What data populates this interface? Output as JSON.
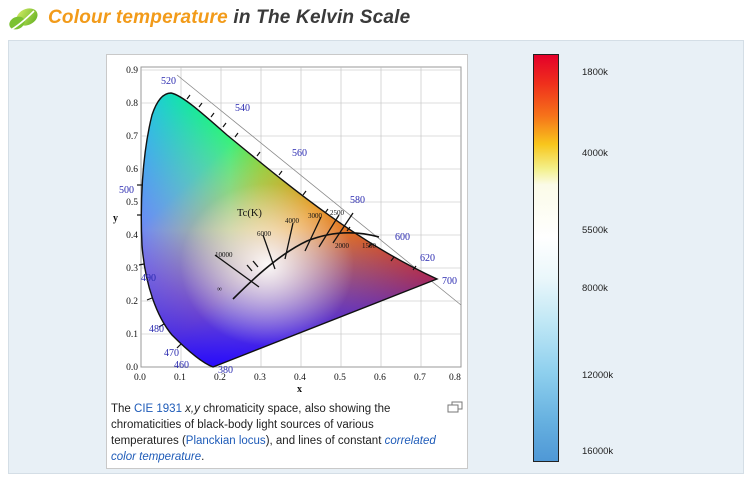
{
  "header": {
    "title_accent": "Colour temperature",
    "title_rest": " in The Kelvin Scale"
  },
  "diagram": {
    "x_ticks": [
      "0.0",
      "0.1",
      "0.2",
      "0.3",
      "0.4",
      "0.5",
      "0.6",
      "0.7",
      "0.8"
    ],
    "y_ticks": [
      "0.0",
      "0.1",
      "0.2",
      "0.3",
      "0.4",
      "0.5",
      "0.6",
      "0.7",
      "0.8",
      "0.9"
    ],
    "x_label": "x",
    "y_label": "y",
    "wavelengths": [
      "520",
      "540",
      "560",
      "580",
      "600",
      "620",
      "700",
      "500",
      "490",
      "480",
      "470",
      "460",
      "380"
    ],
    "tc_label": "Tc(K)",
    "cct_labels": [
      "10000",
      "6000",
      "4000",
      "3000",
      "2500",
      "2000",
      "1500",
      "∞"
    ]
  },
  "caption": {
    "p1": "The ",
    "link1": "CIE 1931",
    "p2": " ",
    "ital": "x,y",
    "p3": " chromaticity space, also showing the chromaticities of black-body light sources of various temperatures (",
    "link2": "Planckian locus",
    "p4": "), and lines of constant ",
    "link3": "correlated color temperature",
    "p5": "."
  },
  "scale": {
    "labels": [
      "1800k",
      "4000k",
      "5500k",
      "8000k",
      "12000k",
      "16000k"
    ]
  },
  "colors": {
    "title_accent": "#f29b1a",
    "title_text": "#3a3a3a",
    "link": "#1e5bb8",
    "wavelength_label": "#2a2ab0"
  }
}
